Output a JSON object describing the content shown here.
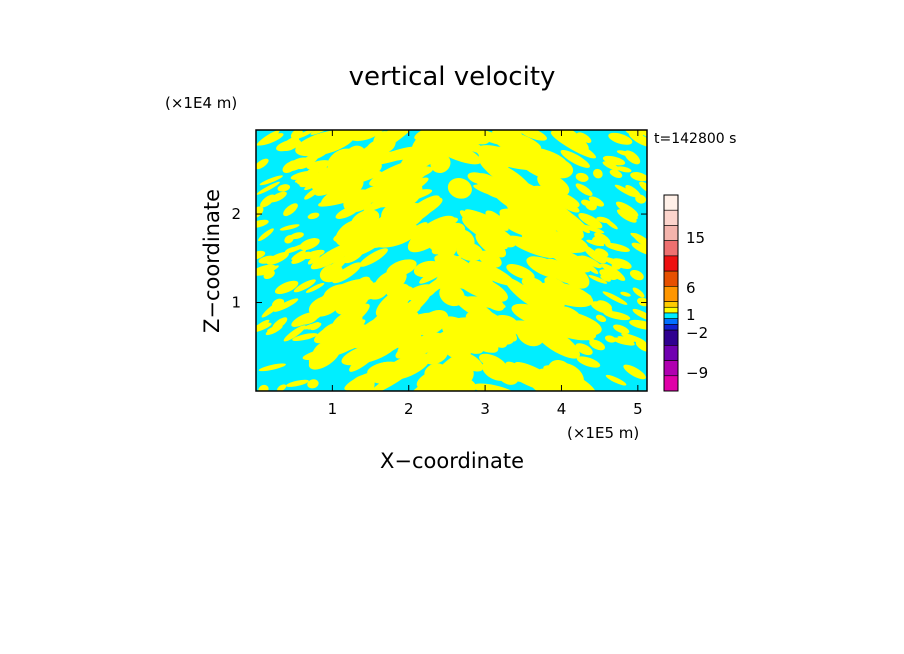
{
  "chart_data": {
    "type": "heatmap",
    "title": "vertical velocity",
    "xlabel": "X−coordinate",
    "ylabel": "Z−coordinate",
    "x_unit": "(×1E5 m)",
    "y_unit": "(×1E4 m)",
    "time_label": "t=142800 s",
    "xlim": [
      0,
      5.12
    ],
    "ylim": [
      0,
      2.95
    ],
    "x_ticks": [
      {
        "value": 1,
        "label": "1"
      },
      {
        "value": 2,
        "label": "2"
      },
      {
        "value": 3,
        "label": "3"
      },
      {
        "value": 4,
        "label": "4"
      },
      {
        "value": 5,
        "label": "5"
      }
    ],
    "y_ticks": [
      {
        "value": 1,
        "label": "1"
      },
      {
        "value": 2,
        "label": "2"
      }
    ],
    "visible_levels": {
      "positive_color": "#ffff00",
      "negative_color": "#00eeff",
      "description": "field dominated by two contour classes just above and just below zero"
    },
    "colorbar": {
      "levels": [
        {
          "color": "#fff0e8"
        },
        {
          "color": "#fcd4cc"
        },
        {
          "color": "#f4b4ac"
        },
        {
          "color": "#ee7070"
        },
        {
          "color": "#ee1010"
        },
        {
          "color": "#e65000"
        },
        {
          "color": "#ff9600"
        },
        {
          "color": "#ffcc00"
        },
        {
          "color": "#ffff00"
        },
        {
          "color": "#00eeff"
        },
        {
          "color": "#0070ff"
        },
        {
          "color": "#1020d0"
        },
        {
          "color": "#300090"
        },
        {
          "color": "#7000b0"
        },
        {
          "color": "#b000b0"
        },
        {
          "color": "#e000a8"
        }
      ],
      "labels": [
        {
          "value": 15,
          "text": "15"
        },
        {
          "value": 6,
          "text": "6"
        },
        {
          "value": 1,
          "text": "1"
        },
        {
          "value": -2,
          "text": "−2"
        },
        {
          "value": -9,
          "text": "−9"
        }
      ]
    }
  }
}
